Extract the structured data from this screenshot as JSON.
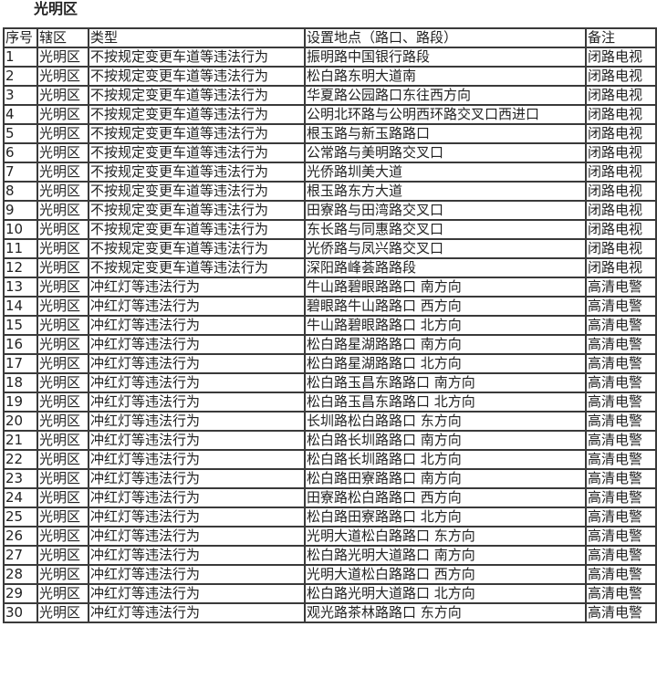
{
  "title": "光明区",
  "headers": [
    "序号",
    "辖区",
    "类型",
    "设置地点（路口、路段）",
    "备注"
  ],
  "rows": [
    [
      "1",
      "光明区",
      "不按规定变更车道等违法行为",
      "振明路中国银行路段",
      "闭路电视"
    ],
    [
      "2",
      "光明区",
      "不按规定变更车道等违法行为",
      "松白路东明大道南",
      "闭路电视"
    ],
    [
      "3",
      "光明区",
      "不按规定变更车道等违法行为",
      "华夏路公园路口东往西方向",
      "闭路电视"
    ],
    [
      "4",
      "光明区",
      "不按规定变更车道等违法行为",
      "公明北环路与公明西环路交叉口西进口",
      "闭路电视"
    ],
    [
      "5",
      "光明区",
      "不按规定变更车道等违法行为",
      "根玉路与新玉路路口",
      "闭路电视"
    ],
    [
      "6",
      "光明区",
      "不按规定变更车道等违法行为",
      "公常路与美明路交叉口",
      "闭路电视"
    ],
    [
      "7",
      "光明区",
      "不按规定变更车道等违法行为",
      "光侨路圳美大道",
      "闭路电视"
    ],
    [
      "8",
      "光明区",
      "不按规定变更车道等违法行为",
      "根玉路东方大道",
      "闭路电视"
    ],
    [
      "9",
      "光明区",
      "不按规定变更车道等违法行为",
      "田寮路与田湾路交叉口",
      "闭路电视"
    ],
    [
      "10",
      "光明区",
      "不按规定变更车道等违法行为",
      "东长路与同惠路交叉口",
      "闭路电视"
    ],
    [
      "11",
      "光明区",
      "不按规定变更车道等违法行为",
      "光侨路与凤兴路交叉口",
      "闭路电视"
    ],
    [
      "12",
      "光明区",
      "不按规定变更车道等违法行为",
      "深阳路峰荟路路段",
      "闭路电视"
    ],
    [
      "13",
      "光明区",
      "冲红灯等违法行为",
      "牛山路碧眼路路口 南方向",
      "高清电警"
    ],
    [
      "14",
      "光明区",
      "冲红灯等违法行为",
      "碧眼路牛山路路口 西方向",
      "高清电警"
    ],
    [
      "15",
      "光明区",
      "冲红灯等违法行为",
      "牛山路碧眼路路口 北方向",
      "高清电警"
    ],
    [
      "16",
      "光明区",
      "冲红灯等违法行为",
      "松白路星湖路路口 南方向",
      "高清电警"
    ],
    [
      "17",
      "光明区",
      "冲红灯等违法行为",
      "松白路星湖路路口 北方向",
      "高清电警"
    ],
    [
      "18",
      "光明区",
      "冲红灯等违法行为",
      "松白路玉昌东路路口 南方向",
      "高清电警"
    ],
    [
      "19",
      "光明区",
      "冲红灯等违法行为",
      "松白路玉昌东路路口 北方向",
      "高清电警"
    ],
    [
      "20",
      "光明区",
      "冲红灯等违法行为",
      "长圳路松白路路口 东方向",
      "高清电警"
    ],
    [
      "21",
      "光明区",
      "冲红灯等违法行为",
      "松白路长圳路路口 南方向",
      "高清电警"
    ],
    [
      "22",
      "光明区",
      "冲红灯等违法行为",
      "松白路长圳路路口 北方向",
      "高清电警"
    ],
    [
      "23",
      "光明区",
      "冲红灯等违法行为",
      "松白路田寮路路口 南方向",
      "高清电警"
    ],
    [
      "24",
      "光明区",
      "冲红灯等违法行为",
      "田寮路松白路路口 西方向",
      "高清电警"
    ],
    [
      "25",
      "光明区",
      "冲红灯等违法行为",
      "松白路田寮路路口 北方向",
      "高清电警"
    ],
    [
      "26",
      "光明区",
      "冲红灯等违法行为",
      "光明大道松白路路口 东方向",
      "高清电警"
    ],
    [
      "27",
      "光明区",
      "冲红灯等违法行为",
      "松白路光明大道路口 南方向",
      "高清电警"
    ],
    [
      "28",
      "光明区",
      "冲红灯等违法行为",
      "光明大道松白路路口 西方向",
      "高清电警"
    ],
    [
      "29",
      "光明区",
      "冲红灯等违法行为",
      "松白路光明大道路口 北方向",
      "高清电警"
    ],
    [
      "30",
      "光明区",
      "冲红灯等违法行为",
      "观光路茶林路路口 东方向",
      "高清电警"
    ]
  ]
}
